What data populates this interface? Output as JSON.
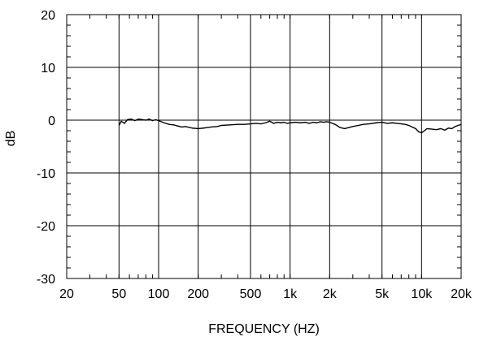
{
  "chart_data": {
    "type": "line",
    "title": "",
    "xlabel": "FREQUENCY  (HZ)",
    "ylabel": "dB",
    "xscale": "log",
    "xlim": [
      20,
      20000
    ],
    "ylim": [
      -30,
      20
    ],
    "grid": true,
    "legend": "none",
    "x_ticks": [
      {
        "value": 20,
        "label": "20"
      },
      {
        "value": 50,
        "label": "50"
      },
      {
        "value": 100,
        "label": "100"
      },
      {
        "value": 200,
        "label": "200"
      },
      {
        "value": 500,
        "label": "500"
      },
      {
        "value": 1000,
        "label": "1k"
      },
      {
        "value": 2000,
        "label": "2k"
      },
      {
        "value": 5000,
        "label": "5k"
      },
      {
        "value": 10000,
        "label": "10k"
      },
      {
        "value": 20000,
        "label": "20k"
      }
    ],
    "y_ticks": [
      {
        "value": 20,
        "label": "20"
      },
      {
        "value": 10,
        "label": "10"
      },
      {
        "value": 0,
        "label": "0"
      },
      {
        "value": -10,
        "label": "-10"
      },
      {
        "value": -20,
        "label": "-20"
      },
      {
        "value": -30,
        "label": "-30"
      }
    ],
    "series": [
      {
        "color": "#000000",
        "x": [
          50,
          52,
          55,
          58,
          62,
          66,
          70,
          75,
          80,
          85,
          90,
          95,
          100,
          110,
          120,
          130,
          140,
          150,
          160,
          180,
          200,
          220,
          250,
          280,
          300,
          350,
          400,
          450,
          500,
          550,
          600,
          650,
          700,
          750,
          800,
          850,
          900,
          950,
          1000,
          1100,
          1200,
          1300,
          1400,
          1500,
          1600,
          1700,
          1800,
          1900,
          2000,
          2200,
          2400,
          2600,
          2800,
          3000,
          3300,
          3600,
          4000,
          4500,
          5000,
          5500,
          6000,
          6500,
          7000,
          7500,
          8000,
          8500,
          9000,
          9500,
          10000,
          10500,
          11000,
          12000,
          13000,
          14000,
          15000,
          16000,
          17000,
          18000,
          19000,
          20000
        ],
        "y": [
          -1.0,
          -0.2,
          -0.6,
          0.1,
          0.2,
          -0.1,
          0.2,
          0.1,
          0.0,
          0.2,
          -0.1,
          0.1,
          -0.1,
          -0.5,
          -0.8,
          -0.9,
          -1.1,
          -1.3,
          -1.2,
          -1.5,
          -1.6,
          -1.5,
          -1.3,
          -1.2,
          -1.0,
          -0.9,
          -0.8,
          -0.8,
          -0.7,
          -0.6,
          -0.7,
          -0.5,
          -0.2,
          -0.6,
          -0.4,
          -0.5,
          -0.4,
          -0.6,
          -0.5,
          -0.4,
          -0.5,
          -0.4,
          -0.6,
          -0.4,
          -0.5,
          -0.3,
          -0.4,
          -0.3,
          -0.4,
          -0.8,
          -1.4,
          -1.6,
          -1.4,
          -1.2,
          -1.0,
          -0.8,
          -0.7,
          -0.5,
          -0.4,
          -0.6,
          -0.5,
          -0.6,
          -0.7,
          -0.8,
          -1.0,
          -1.3,
          -1.6,
          -2.2,
          -2.4,
          -2.0,
          -1.6,
          -1.7,
          -1.8,
          -1.6,
          -1.9,
          -1.5,
          -1.6,
          -1.2,
          -1.0,
          -0.8
        ]
      }
    ]
  }
}
